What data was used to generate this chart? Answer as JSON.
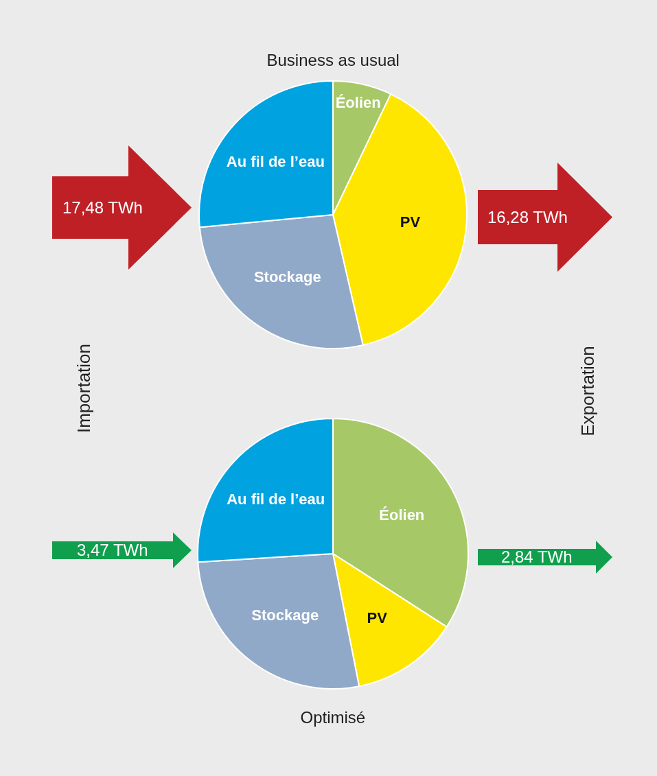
{
  "chart_data": [
    {
      "type": "pie",
      "title": "Business as usual",
      "categories": [
        "Éolien",
        "PV",
        "Stockage",
        "Au fil de l’eau"
      ],
      "values": [
        7.1,
        39.3,
        27.1,
        26.5
      ],
      "colors": [
        "#a6c867",
        "#ffe600",
        "#91a9c8",
        "#00a3e0"
      ],
      "annotations": [
        "17,48 TWh",
        "16,28 TWh",
        "Importation",
        "Exportation"
      ]
    },
    {
      "type": "pie",
      "title": "Optimisé",
      "categories": [
        "Éolien",
        "PV",
        "Stockage",
        "Au fil de l’eau"
      ],
      "values": [
        34.1,
        12.8,
        27.1,
        26.0
      ],
      "colors": [
        "#a6c867",
        "#ffe600",
        "#91a9c8",
        "#00a3e0"
      ],
      "annotations": [
        "3,47 TWh",
        "2,84 TWh"
      ]
    }
  ]
}
